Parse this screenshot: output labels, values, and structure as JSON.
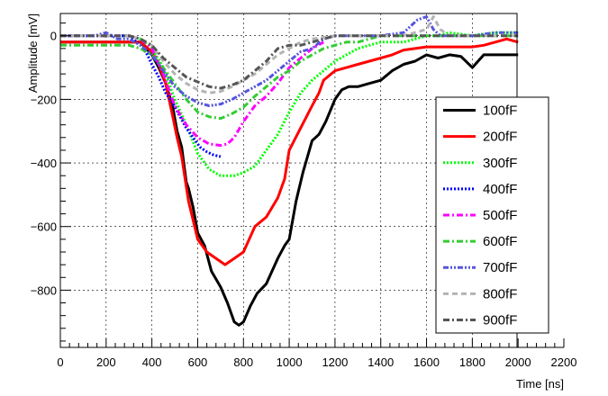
{
  "chart_data": {
    "type": "line",
    "title": "",
    "xlabel": "Time [ns]",
    "ylabel": "Amplitude [mV]",
    "xlim": [
      0,
      2200
    ],
    "ylim": [
      -980,
      70
    ],
    "xticks": [
      0,
      200,
      400,
      600,
      800,
      1000,
      1200,
      1400,
      1600,
      1800,
      2000,
      2200
    ],
    "yticks": [
      -800,
      -600,
      -400,
      -200,
      0
    ],
    "xtick_labels": [
      "0",
      "200",
      "400",
      "600",
      "800",
      "1000",
      "1200",
      "1400",
      "1600",
      "1800",
      "2000",
      "2200"
    ],
    "ytick_labels": [
      "−800",
      "−600",
      "−400",
      "−200",
      "0"
    ],
    "grid": true,
    "legend_position": "right",
    "series": [
      {
        "name": "100fF",
        "color": "#000000",
        "dash": "solid",
        "x": [
          0,
          100,
          200,
          300,
          350,
          400,
          430,
          460,
          490,
          510,
          530,
          550,
          560,
          580,
          600,
          630,
          660,
          700,
          730,
          760,
          780,
          800,
          830,
          860,
          900,
          950,
          980,
          1000,
          1030,
          1060,
          1100,
          1130,
          1160,
          1200,
          1230,
          1260,
          1300,
          1350,
          1400,
          1450,
          1500,
          1550,
          1600,
          1650,
          1700,
          1750,
          1800,
          1850,
          1900,
          1950,
          2000
        ],
        "y": [
          -20,
          -20,
          -20,
          -20,
          -20,
          -60,
          -100,
          -150,
          -220,
          -300,
          -350,
          -460,
          -480,
          -540,
          -620,
          -660,
          -740,
          -790,
          -840,
          -900,
          -910,
          -900,
          -850,
          -810,
          -780,
          -700,
          -660,
          -640,
          -520,
          -430,
          -330,
          -310,
          -270,
          -200,
          -170,
          -160,
          -160,
          -150,
          -140,
          -110,
          -90,
          -80,
          -60,
          -70,
          -60,
          -65,
          -100,
          -60,
          -60,
          -60,
          -60
        ]
      },
      {
        "name": "200fF",
        "color": "#ff0000",
        "dash": "solid",
        "x": [
          0,
          100,
          200,
          300,
          350,
          400,
          430,
          460,
          490,
          510,
          530,
          560,
          600,
          640,
          680,
          720,
          760,
          800,
          850,
          900,
          950,
          980,
          1000,
          1050,
          1100,
          1130,
          1150,
          1200,
          1250,
          1300,
          1350,
          1400,
          1450,
          1500,
          1550,
          1600,
          1650,
          1700,
          1800,
          1850,
          1900,
          1950,
          2000
        ],
        "y": [
          -20,
          -20,
          -20,
          -20,
          -20,
          -50,
          -90,
          -150,
          -250,
          -320,
          -380,
          -520,
          -640,
          -680,
          -700,
          -720,
          -700,
          -680,
          -600,
          -570,
          -510,
          -450,
          -360,
          -290,
          -220,
          -180,
          -140,
          -110,
          -100,
          -90,
          -80,
          -70,
          -60,
          -45,
          -40,
          -35,
          -35,
          -35,
          -35,
          -30,
          -20,
          -10,
          -20
        ]
      },
      {
        "name": "300fF",
        "color": "#00ff00",
        "dash": "dotted",
        "x": [
          0,
          100,
          200,
          300,
          350,
          400,
          450,
          500,
          550,
          600,
          650,
          700,
          730,
          760,
          800,
          850,
          900,
          950,
          1000,
          1050,
          1100,
          1150,
          1200,
          1250,
          1300,
          1350,
          1400,
          1450,
          1500,
          1550,
          1600,
          1650,
          1700,
          1800,
          1900,
          2000
        ],
        "y": [
          0,
          0,
          0,
          0,
          -10,
          -40,
          -100,
          -200,
          -280,
          -370,
          -420,
          -440,
          -440,
          -440,
          -430,
          -410,
          -360,
          -310,
          -240,
          -180,
          -140,
          -110,
          -80,
          -60,
          -40,
          -30,
          -20,
          -20,
          -20,
          -10,
          0,
          0,
          10,
          0,
          10,
          10
        ]
      },
      {
        "name": "400fF",
        "color": "#0000ff",
        "dash": "dotted",
        "x": [
          0,
          100,
          200,
          300,
          350,
          380,
          400,
          430,
          460,
          490,
          520,
          550,
          580,
          610,
          640,
          670,
          700
        ],
        "y": [
          0,
          0,
          0,
          0,
          -30,
          -60,
          -90,
          -130,
          -180,
          -210,
          -250,
          -290,
          -320,
          -350,
          -365,
          -375,
          -380
        ]
      },
      {
        "name": "500fF",
        "color": "#ff00ff",
        "dash": "dashdot",
        "x": [
          0,
          100,
          200,
          300,
          350,
          400,
          450,
          500,
          550,
          600,
          650,
          700,
          730,
          760,
          800,
          850,
          900,
          950,
          1000,
          1050,
          1100,
          1150
        ],
        "y": [
          0,
          0,
          0,
          0,
          -10,
          -40,
          -120,
          -220,
          -280,
          -320,
          -340,
          -345,
          -340,
          -320,
          -270,
          -220,
          -190,
          -150,
          -100,
          -70,
          -40,
          -20
        ]
      },
      {
        "name": "600fF",
        "color": "#33cc33",
        "dash": "dashdot",
        "x": [
          0,
          100,
          200,
          300,
          350,
          400,
          450,
          500,
          550,
          600,
          650,
          700,
          750,
          800,
          850,
          900,
          950,
          1000,
          1050,
          1100,
          1150,
          1200,
          1250,
          1300,
          1350,
          1400,
          1450,
          1500,
          1600,
          1700,
          1800,
          1900,
          2000
        ],
        "y": [
          -30,
          -30,
          -30,
          -30,
          -40,
          -60,
          -100,
          -150,
          -200,
          -240,
          -255,
          -260,
          -245,
          -225,
          -190,
          -160,
          -130,
          -110,
          -80,
          -60,
          -40,
          -30,
          -20,
          -20,
          -10,
          0,
          0,
          0,
          0,
          0,
          0,
          0,
          0
        ]
      },
      {
        "name": "700fF",
        "color": "#5555dd",
        "dash": "dashdotdot",
        "x": [
          0,
          100,
          150,
          200,
          250,
          300,
          350,
          400,
          450,
          500,
          550,
          600,
          650,
          700,
          750,
          800,
          850,
          900,
          950,
          1000,
          1050,
          1100,
          1150,
          1200,
          1250,
          1300,
          1400,
          1500,
          1560,
          1600,
          1630,
          1660,
          1700,
          1800,
          1900,
          2000
        ],
        "y": [
          0,
          0,
          0,
          10,
          -10,
          -10,
          -30,
          -60,
          -110,
          -160,
          -190,
          -210,
          -220,
          -215,
          -200,
          -180,
          -160,
          -140,
          -110,
          -80,
          -50,
          -40,
          -10,
          0,
          0,
          0,
          0,
          10,
          50,
          60,
          20,
          0,
          0,
          0,
          10,
          10
        ]
      },
      {
        "name": "800fF",
        "color": "#b4b4b4",
        "dash": "dashed",
        "x": [
          0,
          100,
          200,
          300,
          350,
          400,
          450,
          500,
          550,
          600,
          650,
          700,
          750,
          800,
          850,
          900,
          950,
          1000,
          1050,
          1100,
          1200,
          1300,
          1400,
          1500,
          1600,
          1630,
          1660,
          1700,
          1800,
          1900,
          2000
        ],
        "y": [
          0,
          0,
          0,
          0,
          -10,
          -30,
          -80,
          -120,
          -150,
          -170,
          -180,
          -175,
          -160,
          -140,
          -120,
          -90,
          -60,
          -40,
          -20,
          -10,
          0,
          0,
          0,
          0,
          20,
          60,
          20,
          0,
          0,
          0,
          0
        ]
      },
      {
        "name": "900fF",
        "color": "#555555",
        "dash": "dashdot",
        "x": [
          0,
          100,
          200,
          300,
          350,
          400,
          450,
          500,
          550,
          600,
          650,
          700,
          750,
          800,
          850,
          900,
          950,
          1000,
          1050,
          1100,
          1200,
          1300,
          1400,
          1500,
          1600,
          1700,
          1800,
          1900,
          2000
        ],
        "y": [
          0,
          0,
          0,
          0,
          -10,
          -30,
          -70,
          -100,
          -130,
          -145,
          -160,
          -165,
          -155,
          -140,
          -110,
          -80,
          -40,
          -30,
          -30,
          -20,
          0,
          0,
          0,
          0,
          0,
          0,
          0,
          0,
          0
        ]
      }
    ]
  }
}
